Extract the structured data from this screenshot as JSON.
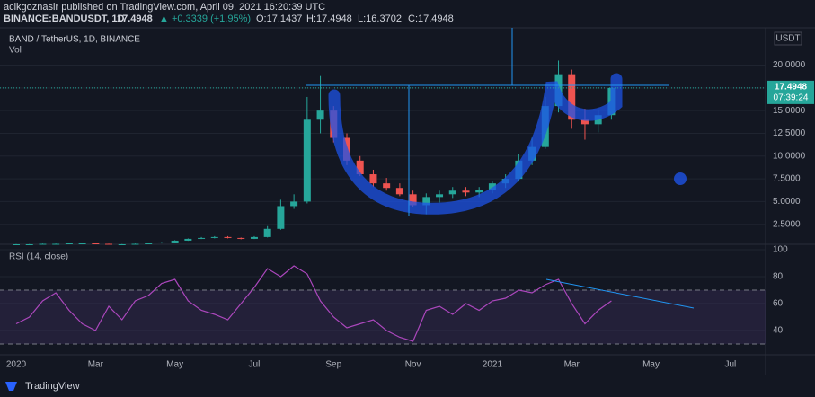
{
  "header": {
    "published": "acikgoznasir published on TradingView.com, April 09, 2021 16:20:39 UTC",
    "symbol": "BINANCE:BANDUSDT, 1D",
    "price": "17.4948",
    "change": "▲ +0.3339 (+1.95%)",
    "open": "O:17.1437",
    "high": "H:17.4948",
    "low": "L:16.3702",
    "close": "C:17.4948"
  },
  "footer": {
    "brand": "TradingView"
  },
  "chart_data": [
    {
      "type": "candlestick",
      "title": "BAND / TetherUS, 1D, BINANCE",
      "volume_label": "Vol",
      "unit": "USDT",
      "up_color": "#26a69a",
      "down_color": "#ef5350",
      "categories": [
        "2020",
        null,
        null,
        null,
        null,
        null,
        "Mar",
        null,
        null,
        null,
        null,
        null,
        "May",
        null,
        null,
        null,
        null,
        null,
        "Jul",
        null,
        null,
        null,
        null,
        null,
        "Sep",
        null,
        null,
        null,
        null,
        null,
        "Nov",
        null,
        null,
        null,
        null,
        null,
        "2021",
        null,
        null,
        null,
        null,
        null,
        "Mar",
        null,
        null,
        null,
        null,
        null,
        "May",
        null,
        null,
        null,
        null,
        null,
        "Jul",
        null,
        null
      ],
      "open": [
        0.28,
        0.3,
        0.3,
        0.35,
        0.35,
        0.4,
        0.4,
        0.35,
        0.3,
        0.3,
        0.35,
        0.4,
        0.5,
        0.7,
        0.9,
        1.0,
        1.1,
        1.0,
        0.9,
        1.1,
        2.0,
        4.5,
        5.0,
        14.0,
        15.0,
        12.0,
        9.5,
        8.0,
        7.0,
        6.5,
        5.8,
        4.6,
        5.5,
        5.8,
        6.2,
        6.0,
        6.3,
        7.0,
        7.5,
        9.5,
        11.0,
        15.5,
        19.0,
        14.0,
        13.5,
        14.5,
        null,
        null,
        null,
        null,
        null,
        null,
        null,
        null,
        null,
        null,
        null
      ],
      "high": [
        0.32,
        0.33,
        0.38,
        0.38,
        0.43,
        0.44,
        0.42,
        0.37,
        0.33,
        0.38,
        0.43,
        0.55,
        0.75,
        0.95,
        1.1,
        1.2,
        1.2,
        1.05,
        1.2,
        2.3,
        5.2,
        5.8,
        16.5,
        18.8,
        15.5,
        12.5,
        10.0,
        8.5,
        7.6,
        7.0,
        6.2,
        5.9,
        6.2,
        6.6,
        6.6,
        6.6,
        7.2,
        8.0,
        10.2,
        12.0,
        16.5,
        20.5,
        19.5,
        15.2,
        15.0,
        17.6,
        null,
        null,
        null,
        null,
        null,
        null,
        null,
        null,
        null,
        null,
        null
      ],
      "low": [
        0.26,
        0.28,
        0.29,
        0.33,
        0.33,
        0.37,
        0.33,
        0.28,
        0.27,
        0.29,
        0.34,
        0.39,
        0.48,
        0.68,
        0.88,
        0.95,
        0.95,
        0.85,
        0.88,
        1.05,
        1.9,
        4.2,
        4.8,
        12.5,
        11.5,
        9.0,
        7.8,
        6.6,
        6.2,
        5.6,
        4.4,
        3.6,
        4.9,
        5.4,
        5.6,
        5.5,
        5.9,
        6.5,
        7.2,
        9.0,
        10.8,
        14.8,
        13.0,
        11.8,
        12.6,
        14.0,
        null,
        null,
        null,
        null,
        null,
        null,
        null,
        null,
        null,
        null,
        null
      ],
      "close": [
        0.3,
        0.3,
        0.35,
        0.35,
        0.4,
        0.4,
        0.35,
        0.3,
        0.3,
        0.35,
        0.4,
        0.5,
        0.7,
        0.9,
        1.0,
        1.1,
        1.0,
        0.9,
        1.1,
        2.0,
        4.5,
        5.0,
        14.0,
        15.0,
        12.0,
        9.5,
        8.0,
        7.0,
        6.5,
        5.8,
        4.6,
        5.5,
        5.8,
        6.2,
        6.0,
        6.3,
        7.0,
        7.5,
        9.5,
        11.0,
        15.5,
        19.0,
        14.0,
        13.5,
        14.5,
        17.4948,
        null,
        null,
        null,
        null,
        null,
        null,
        null,
        null,
        null,
        null,
        null
      ],
      "ylim": [
        0.3,
        24.1
      ],
      "yticks": [
        {
          "value": 2.5,
          "label": "2.5000"
        },
        {
          "value": 5,
          "label": "5.0000"
        },
        {
          "value": 7.5,
          "label": "7.5000"
        },
        {
          "value": 10,
          "label": "10.0000"
        },
        {
          "value": 12.5,
          "label": "12.5000"
        },
        {
          "value": 15,
          "label": "15.0000"
        },
        {
          "value": 17.5,
          "label": "17.5000"
        },
        {
          "value": 20,
          "label": "20.0000"
        }
      ],
      "last_price": 17.4948,
      "countdown": "07:39:24",
      "grid": true
    },
    {
      "type": "line",
      "title": "RSI (14, close)",
      "color": "#ab47bc",
      "values": [
        45,
        50,
        62,
        68,
        55,
        45,
        40,
        58,
        48,
        62,
        66,
        75,
        78,
        62,
        55,
        52,
        48,
        60,
        72,
        86,
        80,
        88,
        82,
        62,
        50,
        42,
        45,
        48,
        40,
        35,
        32,
        55,
        58,
        52,
        60,
        55,
        62,
        64,
        70,
        68,
        74,
        78,
        60,
        45,
        55,
        62,
        null,
        null,
        null,
        null,
        null,
        null,
        null,
        null,
        null,
        null,
        null
      ],
      "ylim": [
        22,
        104
      ],
      "yticks": [
        40,
        60,
        80,
        100
      ],
      "bands": [
        70,
        30
      ],
      "band_color": "#7e57c2"
    }
  ]
}
